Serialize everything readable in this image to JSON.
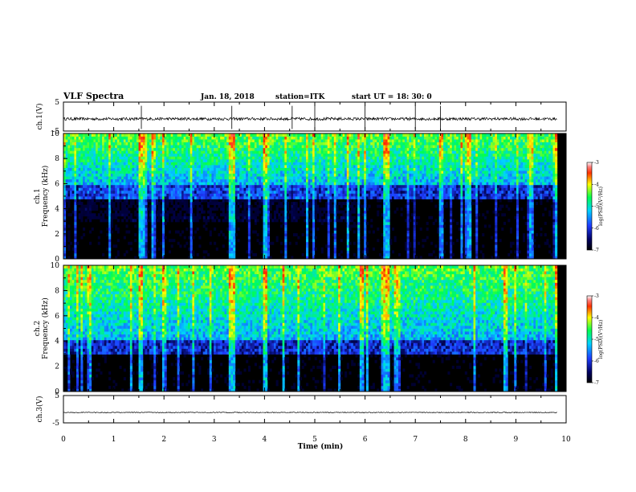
{
  "header": {
    "title": "VLF Spectra",
    "date": "Jan. 18, 2018",
    "station": "station=ITK",
    "start": "start UT =  18: 30: 0"
  },
  "colors": {
    "spectro_low": "#000000",
    "spectro_mid": "#1e3cff",
    "spectro_cyan": "#00d2ff",
    "spectro_green": "#00ff50",
    "spectro_yellow": "#ffff00",
    "spectro_red": "#ff0000"
  },
  "chart_data": [
    {
      "type": "line",
      "panel": "ch1-waveform",
      "ylabel": "ch.1(V)",
      "ylim": [
        -5,
        5
      ],
      "yticks": [
        "5",
        "-5"
      ],
      "xlim": [
        0,
        10
      ],
      "x_unit": "min",
      "baseline_value": -0.8,
      "description_values": {
        "noise_amplitude": 0.5,
        "spike_times": [
          1.55,
          3.35,
          4.55,
          5.0,
          6.0,
          7.0,
          7.5
        ]
      }
    },
    {
      "type": "heatmap",
      "panel": "ch1-spectrogram",
      "ylabel": [
        "ch.1",
        "Frequency (kHz)"
      ],
      "ylim": [
        0,
        10
      ],
      "yticks": [
        "0",
        "2",
        "4",
        "6",
        "8",
        "10"
      ],
      "xlim": [
        0,
        10
      ],
      "data_end_min": 9.82,
      "colorbar": {
        "label": "log(PSD)(V²/Hz)",
        "range": [
          -7,
          -3
        ],
        "ticks": [
          "-3",
          "-4",
          "-5",
          "-6",
          "-7"
        ]
      },
      "noise_floor_kHz": 6.0,
      "strong_events_min": [
        1.55,
        3.35,
        4.0,
        6.4,
        6.45,
        9.82
      ]
    },
    {
      "type": "heatmap",
      "panel": "ch2-spectrogram",
      "ylabel": [
        "ch.2",
        "Frequency (kHz)"
      ],
      "ylim": [
        0,
        10
      ],
      "yticks": [
        "0",
        "2",
        "4",
        "6",
        "8",
        "10"
      ],
      "xlim": [
        0,
        10
      ],
      "data_end_min": 9.82,
      "colorbar": {
        "label": "log(PSD)(V²/Hz)",
        "range": [
          -7,
          -3
        ],
        "ticks": [
          "-3",
          "-4",
          "-5",
          "-6",
          "-7"
        ]
      },
      "noise_floor_kHz": 4.2,
      "strong_events_min": [
        1.55,
        3.35,
        4.0,
        6.4,
        6.45,
        9.82
      ]
    },
    {
      "type": "line",
      "panel": "ch3-waveform",
      "ylabel": "ch.3(V)",
      "ylim": [
        -5,
        5
      ],
      "yticks": [
        "5",
        "-5"
      ],
      "xlim": [
        0,
        10
      ],
      "baseline_value": -1.2
    }
  ],
  "xaxis": {
    "label": "Time (min)",
    "ticks": [
      "0",
      "1",
      "2",
      "3",
      "4",
      "5",
      "6",
      "7",
      "8",
      "9",
      "10"
    ]
  }
}
